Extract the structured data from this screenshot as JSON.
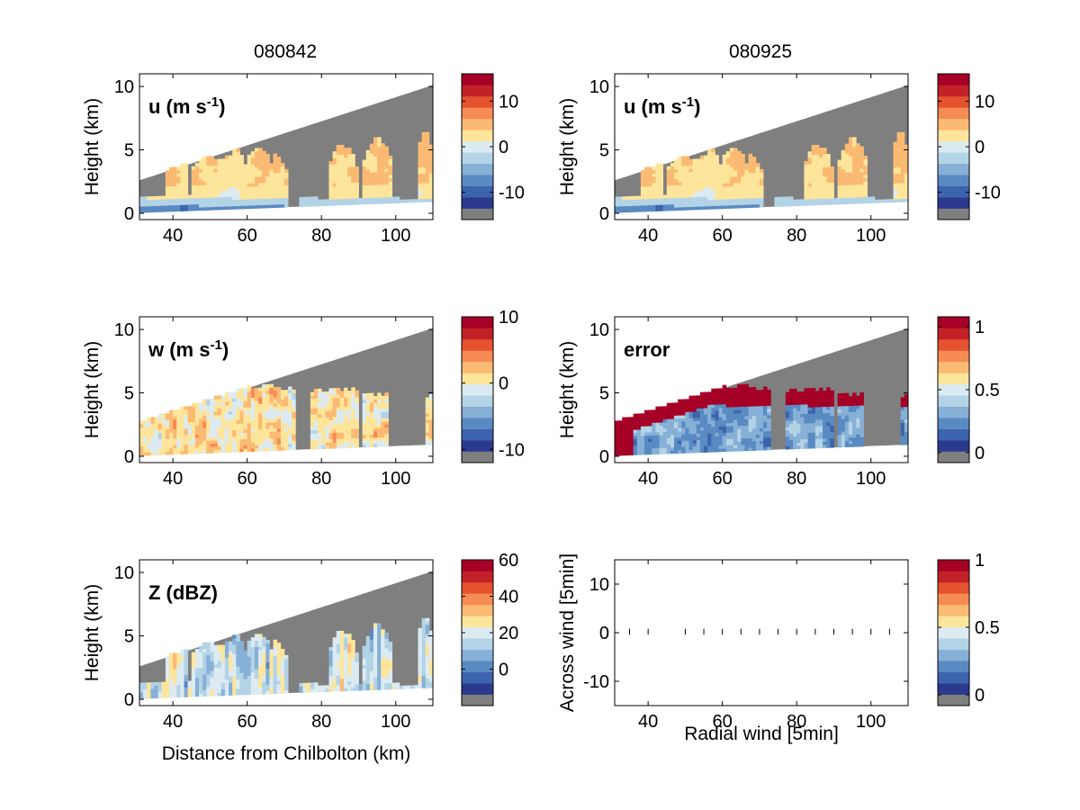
{
  "chart_data": {
    "type": "heatmap",
    "column_titles": [
      "080842",
      "080925"
    ],
    "panels": [
      {
        "id": "u-080842",
        "annotation": "u (m s",
        "annotation_sup": "-1",
        "annotation_suffix": ")",
        "xlabel": "",
        "ylabel": "Height (km)",
        "xlim": [
          31,
          110
        ],
        "ylim": [
          -0.5,
          11
        ],
        "xticks": [
          40,
          60,
          80,
          100
        ],
        "yticks": [
          0,
          5,
          10
        ],
        "colorbar": {
          "range": [
            -16,
            16
          ],
          "ticks": [
            -10,
            0,
            10
          ],
          "tick_labels": [
            "-10",
            "0",
            "10"
          ]
        },
        "field": "u"
      },
      {
        "id": "u-080925",
        "annotation": "u (m s",
        "annotation_sup": "-1",
        "annotation_suffix": ")",
        "xlabel": "",
        "ylabel": "Height (km)",
        "xlim": [
          31,
          110
        ],
        "ylim": [
          -0.5,
          11
        ],
        "xticks": [
          40,
          60,
          80,
          100
        ],
        "yticks": [
          0,
          5,
          10
        ],
        "colorbar": {
          "range": [
            -16,
            16
          ],
          "ticks": [
            -10,
            0,
            10
          ],
          "tick_labels": [
            "-10",
            "0",
            "10"
          ]
        },
        "field": "u"
      },
      {
        "id": "w-080842",
        "annotation": "w (m s",
        "annotation_sup": "-1",
        "annotation_suffix": ")",
        "xlabel": "",
        "ylabel": "Height (km)",
        "xlim": [
          31,
          110
        ],
        "ylim": [
          -0.5,
          11
        ],
        "xticks": [
          40,
          60,
          80,
          100
        ],
        "yticks": [
          0,
          5,
          10
        ],
        "colorbar": {
          "range": [
            -12,
            10
          ],
          "ticks": [
            -10,
            0,
            10
          ],
          "tick_labels": [
            "-10",
            "0",
            "10"
          ]
        },
        "field": "w"
      },
      {
        "id": "error-080925",
        "annotation": "error",
        "annotation_sup": "",
        "annotation_suffix": "",
        "xlabel": "",
        "ylabel": "Height (km)",
        "xlim": [
          31,
          110
        ],
        "ylim": [
          -0.5,
          11
        ],
        "xticks": [
          40,
          60,
          80,
          100
        ],
        "yticks": [
          0,
          5,
          10
        ],
        "colorbar": {
          "range": [
            -0.08,
            1.08
          ],
          "ticks": [
            0,
            0.5,
            1
          ],
          "tick_labels": [
            "0",
            "0.5",
            "1"
          ]
        },
        "field": "error"
      },
      {
        "id": "Z-080842",
        "annotation": "Z (dBZ)",
        "annotation_sup": "",
        "annotation_suffix": "",
        "xlabel": "Distance from Chilbolton (km)",
        "ylabel": "Height (km)",
        "xlim": [
          31,
          110
        ],
        "ylim": [
          -0.5,
          11
        ],
        "xticks": [
          40,
          60,
          80,
          100
        ],
        "yticks": [
          0,
          5,
          10
        ],
        "colorbar": {
          "range": [
            -20,
            60
          ],
          "ticks": [
            0,
            20,
            40,
            60
          ],
          "tick_labels": [
            "0",
            "20",
            "40",
            "60"
          ]
        },
        "field": "Z"
      },
      {
        "id": "vectors",
        "annotation": "",
        "annotation_sup": "",
        "annotation_suffix": "",
        "xlabel": "Radial wind [5min]",
        "ylabel": "Across wind [5min]",
        "xlim": [
          31,
          110
        ],
        "ylim": [
          -15,
          15
        ],
        "xticks": [
          40,
          60,
          80,
          100
        ],
        "yticks": [
          -10,
          0,
          10
        ],
        "colorbar": {
          "range": [
            -0.08,
            1.0
          ],
          "ticks": [
            0,
            0.5,
            1
          ],
          "tick_labels": [
            "0",
            "0.5",
            "1"
          ]
        },
        "field": "vectors",
        "vector_x": [
          35,
          40,
          50,
          55,
          60,
          65,
          70,
          75,
          80,
          85,
          90,
          95,
          100,
          105,
          110
        ]
      }
    ],
    "colormap": [
      "#7f7f7f",
      "#2b3a8f",
      "#3c64ae",
      "#5a8ac2",
      "#86b0d6",
      "#b3d3e6",
      "#dcebf2",
      "#fde59b",
      "#fbba73",
      "#f68b54",
      "#e4522f",
      "#c22227",
      "#a50026"
    ]
  }
}
